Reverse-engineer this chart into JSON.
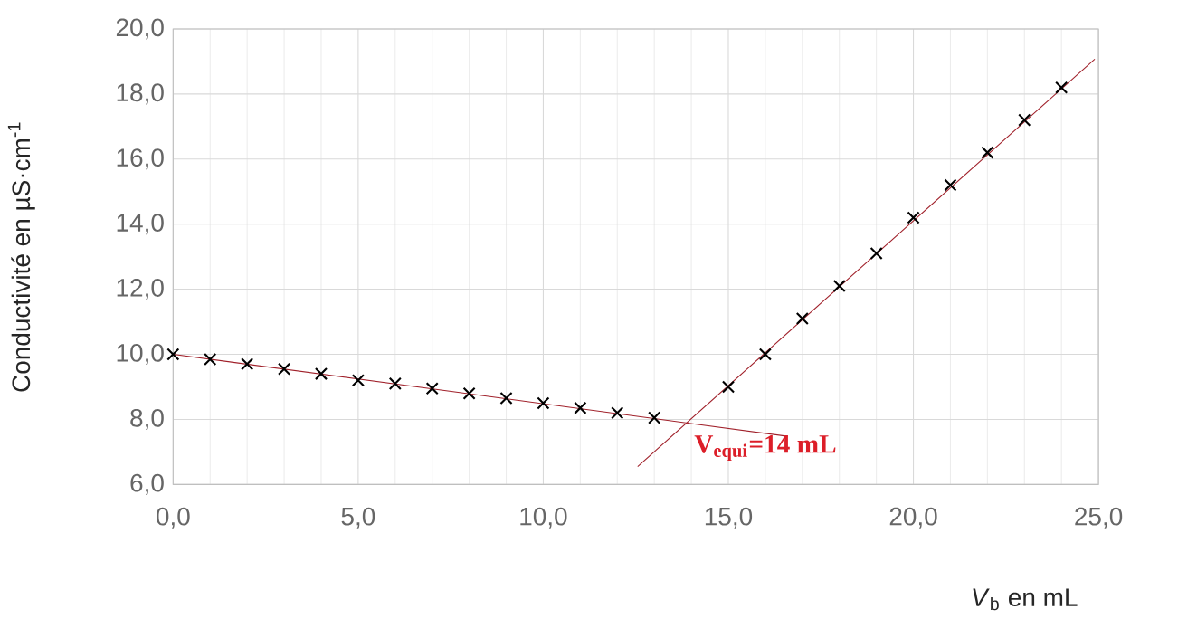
{
  "chart_data": {
    "type": "scatter",
    "xlabel": "*V*$_{b}$ en mL",
    "ylabel": "Conductivité en µS·cm$^{-1}$",
    "x": [
      0,
      1,
      2,
      3,
      4,
      5,
      6,
      7,
      8,
      9,
      10,
      11,
      12,
      13,
      15,
      16,
      17,
      18,
      19,
      20,
      21,
      22,
      23,
      24
    ],
    "series": [
      {
        "color": "#000000",
        "marker": "cross",
        "values": [
          10.0,
          9.85,
          9.7,
          9.55,
          9.4,
          9.2,
          9.1,
          8.95,
          8.8,
          8.65,
          8.5,
          8.35,
          8.2,
          8.05,
          9.0,
          10.0,
          11.1,
          12.1,
          13.1,
          14.2,
          15.2,
          16.2,
          17.2,
          18.2
        ]
      },
      {
        "type": "line",
        "color": "#a0202a",
        "marker": "none",
        "x": [
          0,
          16.6
        ],
        "values": [
          10.0,
          7.48
        ]
      },
      {
        "type": "line",
        "color": "#a0202a",
        "marker": "none",
        "x": [
          12.55,
          24.9
        ],
        "values": [
          6.55,
          19.07
        ]
      }
    ],
    "xlim": [
      0,
      25
    ],
    "ylim": [
      6,
      20
    ],
    "xticks": [
      {
        "value": 0,
        "label": "0,0"
      },
      {
        "value": 5,
        "label": "5,0"
      },
      {
        "value": 10,
        "label": "10,0"
      },
      {
        "value": 15,
        "label": "15,0"
      },
      {
        "value": 20,
        "label": "20,0"
      },
      {
        "value": 25,
        "label": "25,0"
      }
    ],
    "yticks": [
      {
        "value": 6,
        "label": "6,0"
      },
      {
        "value": 8,
        "label": "8,0"
      },
      {
        "value": 10,
        "label": "10,0"
      },
      {
        "value": 12,
        "label": "12,0"
      },
      {
        "value": 14,
        "label": "14,0"
      },
      {
        "value": 16,
        "label": "16,0"
      },
      {
        "value": 18,
        "label": "18,0"
      },
      {
        "value": 20,
        "label": "20,0"
      }
    ],
    "grid": true,
    "annotations": [
      {
        "text": "V$_{equi}$=14 mL",
        "x": 14,
        "y": 7.9
      }
    ]
  }
}
